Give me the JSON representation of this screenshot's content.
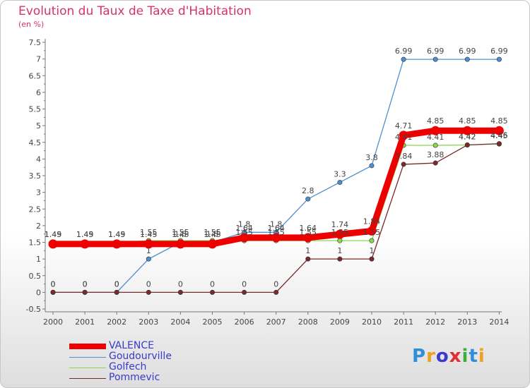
{
  "chart_data": {
    "type": "line",
    "title": "Evolution du Taux de Taxe d'Habitation",
    "subtitle": "(en %)",
    "xlabel": "",
    "ylabel": "",
    "x": [
      "2000",
      "2001",
      "2002",
      "2003",
      "2004",
      "2005",
      "2006",
      "2007",
      "2008",
      "2009",
      "2010",
      "2011",
      "2012",
      "2013",
      "2014"
    ],
    "ylim": [
      -0.5,
      7.5
    ],
    "yticks": [
      "-0.5",
      "0",
      "0.5",
      "1",
      "1.5",
      "2",
      "2.5",
      "3",
      "3.5",
      "4",
      "4.5",
      "5",
      "5.5",
      "6",
      "6.5",
      "7",
      "7.5"
    ],
    "grid": false,
    "legend_position": "bottom-left",
    "series": [
      {
        "name": "VALENCE",
        "color": "#ee0000",
        "values": [
          1.45,
          1.45,
          1.45,
          1.45,
          1.45,
          1.45,
          1.64,
          1.64,
          1.64,
          1.74,
          1.84,
          4.71,
          4.85,
          4.85,
          4.85
        ],
        "labels": [
          "1.45",
          "1.45",
          "1.45",
          "1.45",
          "1.45",
          "1.45",
          "1.64",
          "1.64",
          "1.64",
          "1.74",
          "1.84",
          "4.71",
          "4.85",
          "4.85",
          "4.85"
        ]
      },
      {
        "name": "Goudourville",
        "color": "#4f8fcf",
        "values": [
          0,
          0,
          0,
          1,
          1.5,
          1.5,
          1.8,
          1.8,
          2.8,
          3.3,
          3.8,
          6.99,
          6.99,
          6.99,
          6.99
        ],
        "labels": [
          "0",
          "0",
          "0",
          "1",
          "1.5",
          "1.5",
          "1.8",
          "1.8",
          "2.8",
          "3.3",
          "3.8",
          "6.99",
          "6.99",
          "6.99",
          "6.99"
        ]
      },
      {
        "name": "Golfech",
        "color": "#88d84a",
        "values": [
          1.49,
          1.49,
          1.49,
          1.55,
          1.55,
          1.55,
          1.55,
          1.55,
          1.55,
          1.55,
          1.55,
          4.41,
          4.41,
          4.42,
          4.45
        ],
        "labels": [
          "1.49",
          "1.49",
          "1.49",
          "1.55",
          "1.55",
          "1.55",
          "1.55",
          "1.55",
          "1.55",
          "1.55",
          "1.55",
          "4.41",
          "4.41",
          "4.42",
          "4.45"
        ]
      },
      {
        "name": "Pommevic",
        "color": "#7a2a2a",
        "values": [
          0,
          0,
          0,
          0,
          0,
          0,
          0,
          0,
          1,
          1,
          1,
          3.84,
          3.88,
          4.42,
          4.46
        ],
        "labels": [
          "0",
          "0",
          "0",
          "0",
          "0",
          "0",
          "0",
          "0",
          "1",
          "1",
          "1",
          "3.84",
          "3.88",
          "4.42",
          "4.46"
        ]
      }
    ]
  },
  "brand": {
    "letters": [
      "P",
      "r",
      "o",
      "x",
      "i",
      "t",
      "i"
    ],
    "colors": [
      "#2f8fd8",
      "#f0a020",
      "#3a3acc",
      "#e03030",
      "#3ab03a",
      "#2f8fd8",
      "#f0a020"
    ]
  }
}
